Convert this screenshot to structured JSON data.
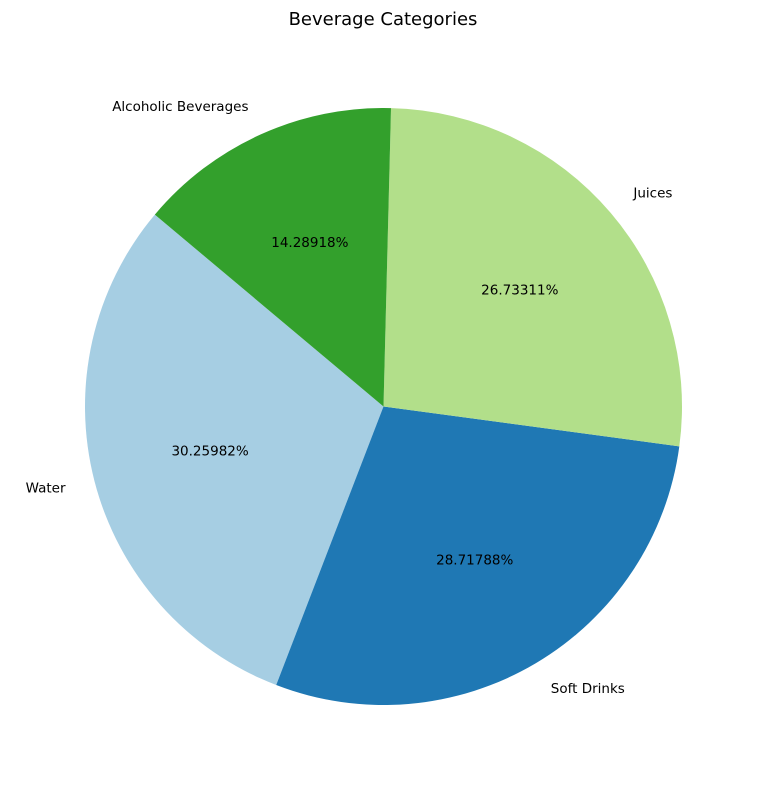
{
  "chart_data": {
    "type": "pie",
    "title": "Beverage Categories",
    "start_angle_deg": 140,
    "direction": "counterclockwise",
    "slices": [
      {
        "label": "Water",
        "value": 30.25982,
        "pct_text": "30.25982%",
        "color": "#a6cee3"
      },
      {
        "label": "Soft Drinks",
        "value": 28.71788,
        "pct_text": "28.71788%",
        "color": "#1f78b4"
      },
      {
        "label": "Juices",
        "value": 26.73311,
        "pct_text": "26.73311%",
        "color": "#b2df8a"
      },
      {
        "label": "Alcoholic Beverages",
        "value": 14.28918,
        "pct_text": "14.28918%",
        "color": "#33a02c"
      }
    ]
  }
}
